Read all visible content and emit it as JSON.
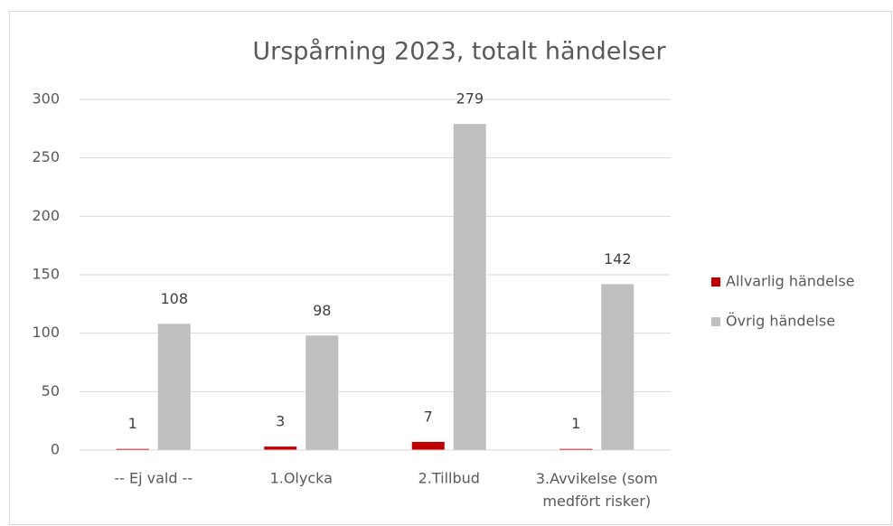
{
  "chart_data": {
    "type": "bar",
    "title": "Urspårning 2023, totalt händelser",
    "categories": [
      "-- Ej vald --",
      "1.Olycka",
      "2.Tillbud",
      "3.Avvikelse (som medfört risker)"
    ],
    "series": [
      {
        "name": "Allvarlig händelse",
        "color": "#c00000",
        "values": [
          1,
          3,
          7,
          1
        ]
      },
      {
        "name": "Övrig händelse",
        "color": "#bfbfbf",
        "values": [
          108,
          98,
          279,
          142
        ]
      }
    ],
    "ylim": [
      0,
      300
    ],
    "yticks": [
      0,
      50,
      100,
      150,
      200,
      250,
      300
    ],
    "grid": true,
    "legend": "right"
  }
}
